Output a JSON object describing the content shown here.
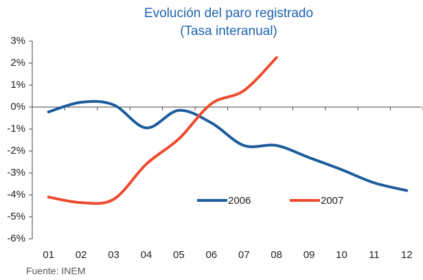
{
  "chart_data": {
    "type": "line",
    "title": [
      "Evolución del paro registrado",
      "(Tasa interanual)"
    ],
    "source": "Fuente: INEM",
    "categories": [
      "01",
      "02",
      "03",
      "04",
      "05",
      "06",
      "07",
      "08",
      "09",
      "10",
      "11",
      "12"
    ],
    "series": [
      {
        "name": "2006",
        "color": "#1d5c9c",
        "values": [
          -0.22,
          0.22,
          0.1,
          -0.95,
          -0.15,
          -0.72,
          -1.75,
          -1.75,
          -2.3,
          -2.85,
          -3.45,
          -3.8
        ]
      },
      {
        "name": "2007",
        "color": "#ee4a2e",
        "values": [
          -4.1,
          -4.35,
          -4.2,
          -2.6,
          -1.45,
          0.15,
          0.75,
          2.25,
          null,
          null,
          null,
          null
        ]
      }
    ],
    "ylim": [
      -6,
      3
    ],
    "yticks": [
      {
        "value": 3,
        "label": "3%"
      },
      {
        "value": 2,
        "label": "2%"
      },
      {
        "value": 1,
        "label": "1%"
      },
      {
        "value": 0,
        "label": "0%"
      },
      {
        "value": -1,
        "label": "-1%"
      },
      {
        "value": -2,
        "label": "-2%"
      },
      {
        "value": -3,
        "label": "-3%"
      },
      {
        "value": -4,
        "label": "-4%"
      },
      {
        "value": -5,
        "label": "-5%"
      },
      {
        "value": -6,
        "label": "-6%"
      }
    ],
    "grid": false
  }
}
